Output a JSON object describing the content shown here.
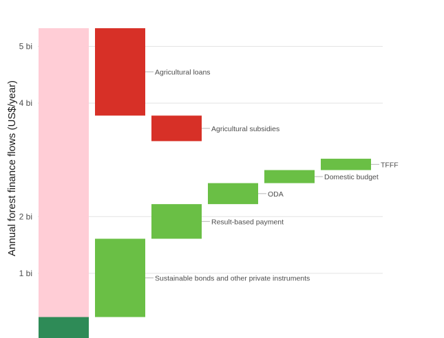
{
  "chart_data": {
    "type": "bar",
    "subtype": "waterfall",
    "title": "",
    "xlabel": "",
    "ylabel": "Annual forest finance flows (US$/year)",
    "ylim": [
      0,
      5.3
    ],
    "yticks": [
      {
        "value": 1,
        "label": "1 bi"
      },
      {
        "value": 2,
        "label": "2 bi"
      },
      {
        "value": 4,
        "label": "4 bi"
      },
      {
        "value": 5,
        "label": "5 bi"
      }
    ],
    "grid": true,
    "legend": "none",
    "total_bar": {
      "top": 5.32,
      "highlight_range": [
        0.23,
        5.32
      ],
      "base_range": [
        -0.23,
        0.23
      ],
      "highlight_color": "#ffcdd6",
      "base_color": "#2e8b57"
    },
    "steps": [
      {
        "label": "Agricultural loans",
        "start": 5.32,
        "end": 3.78,
        "color": "#d73027"
      },
      {
        "label": "Agricultural subsidies",
        "start": 3.78,
        "end": 3.33,
        "color": "#d73027"
      },
      {
        "label": "TFFF",
        "start": 3.02,
        "end": 2.82,
        "color": "#6abf45"
      },
      {
        "label": "Domestic budget",
        "start": 2.82,
        "end": 2.59,
        "color": "#6abf45"
      },
      {
        "label": "ODA",
        "start": 2.59,
        "end": 2.22,
        "color": "#6abf45"
      },
      {
        "label": "Result-based payment",
        "start": 2.22,
        "end": 1.61,
        "color": "#6abf45"
      },
      {
        "label": "Sustainable bonds and other private instruments",
        "start": 1.61,
        "end": 0.23,
        "color": "#6abf45"
      }
    ],
    "step_columns": [
      1,
      2,
      5,
      4,
      3,
      2,
      1
    ]
  }
}
